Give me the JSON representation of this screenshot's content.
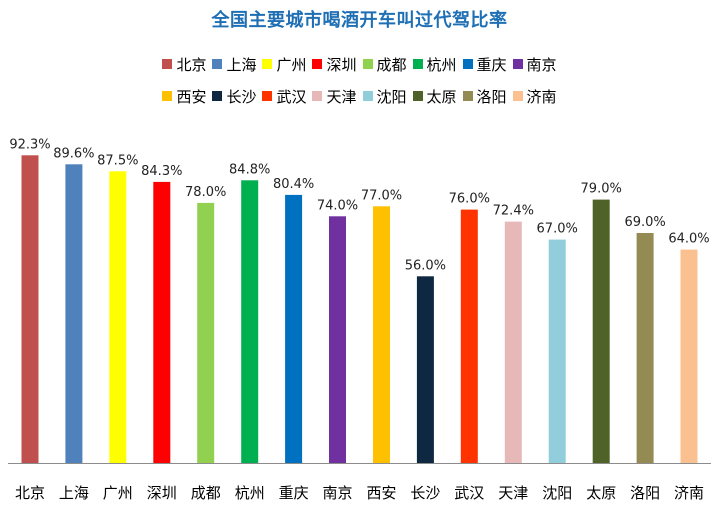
{
  "chart_data": {
    "type": "bar",
    "title": "全国主要城市喝酒开车叫过代驾比率",
    "xlabel": "",
    "ylabel": "",
    "ylim": [
      0,
      100
    ],
    "grid": false,
    "legend_position": "top",
    "categories": [
      "北京",
      "上海",
      "广州",
      "深圳",
      "成都",
      "杭州",
      "重庆",
      "南京",
      "西安",
      "长沙",
      "武汉",
      "天津",
      "沈阳",
      "太原",
      "洛阳",
      "济南"
    ],
    "values": [
      92.3,
      89.6,
      87.5,
      84.3,
      78.0,
      84.8,
      80.4,
      74.0,
      77.0,
      56.0,
      76.0,
      72.4,
      67.0,
      79.0,
      69.0,
      64.0
    ],
    "value_labels": [
      "92.3%",
      "89.6%",
      "87.5%",
      "84.3%",
      "78.0%",
      "84.8%",
      "80.4%",
      "74.0%",
      "77.0%",
      "56.0%",
      "76.0%",
      "72.4%",
      "67.0%",
      "79.0%",
      "69.0%",
      "64.0%"
    ],
    "colors": [
      "#c0504d",
      "#4f81bd",
      "#ffff00",
      "#ff0000",
      "#92d050",
      "#00b050",
      "#0070c0",
      "#7030a0",
      "#ffc000",
      "#0e2841",
      "#ff3300",
      "#e6b8b7",
      "#92cddc",
      "#4f6228",
      "#948a54",
      "#fac090"
    ]
  }
}
